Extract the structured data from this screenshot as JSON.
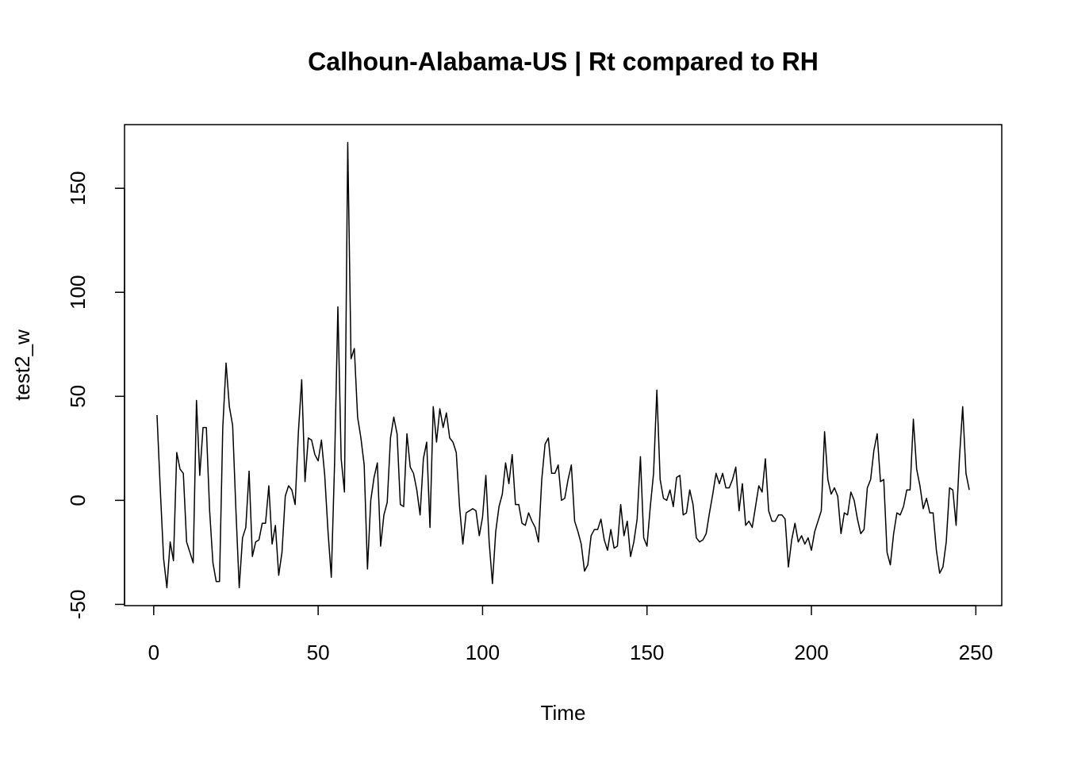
{
  "chart_data": {
    "type": "line",
    "title": "Calhoun-Alabama-US | Rt compared to RH",
    "x_label": "Time",
    "y_label": "test2_w",
    "color": "#000000",
    "xlim": [
      -8.88,
      257.88
    ],
    "ylim": [
      -50.6,
      180.6
    ],
    "xticks": [
      0,
      50,
      100,
      150,
      200,
      250
    ],
    "yticks": [
      -50,
      0,
      50,
      100,
      150
    ],
    "x": [
      1,
      2,
      3,
      4,
      5,
      6,
      7,
      8,
      9,
      10,
      11,
      12,
      13,
      14,
      15,
      16,
      17,
      18,
      19,
      20,
      21,
      22,
      23,
      24,
      25,
      26,
      27,
      28,
      29,
      30,
      31,
      32,
      33,
      34,
      35,
      36,
      37,
      38,
      39,
      40,
      41,
      42,
      43,
      44,
      45,
      46,
      47,
      48,
      49,
      50,
      51,
      52,
      53,
      54,
      55,
      56,
      57,
      58,
      59,
      60,
      61,
      62,
      63,
      64,
      65,
      66,
      67,
      68,
      69,
      70,
      71,
      72,
      73,
      74,
      75,
      76,
      77,
      78,
      79,
      80,
      81,
      82,
      83,
      84,
      85,
      86,
      87,
      88,
      89,
      90,
      91,
      92,
      93,
      94,
      95,
      96,
      97,
      98,
      99,
      100,
      101,
      102,
      103,
      104,
      105,
      106,
      107,
      108,
      109,
      110,
      111,
      112,
      113,
      114,
      115,
      116,
      117,
      118,
      119,
      120,
      121,
      122,
      123,
      124,
      125,
      126,
      127,
      128,
      129,
      130,
      131,
      132,
      133,
      134,
      135,
      136,
      137,
      138,
      139,
      140,
      141,
      142,
      143,
      144,
      145,
      146,
      147,
      148,
      149,
      150,
      151,
      152,
      153,
      154,
      155,
      156,
      157,
      158,
      159,
      160,
      161,
      162,
      163,
      164,
      165,
      166,
      167,
      168,
      169,
      170,
      171,
      172,
      173,
      174,
      175,
      176,
      177,
      178,
      179,
      180,
      181,
      182,
      183,
      184,
      185,
      186,
      187,
      188,
      189,
      190,
      191,
      192,
      193,
      194,
      195,
      196,
      197,
      198,
      199,
      200,
      201,
      202,
      203,
      204,
      205,
      206,
      207,
      208,
      209,
      210,
      211,
      212,
      213,
      214,
      215,
      216,
      217,
      218,
      219,
      220,
      221,
      222,
      223,
      224,
      225,
      226,
      227,
      228,
      229,
      230,
      231,
      232,
      233,
      234,
      235,
      236,
      237,
      238,
      239,
      240,
      241,
      242,
      243,
      244,
      245,
      246,
      247,
      248
    ],
    "values": [
      41,
      5,
      -28,
      -42,
      -20,
      -29,
      23,
      15,
      13,
      -20,
      -25,
      -30,
      48,
      12,
      35,
      35,
      -5,
      -30,
      -39,
      -39,
      35,
      66,
      45,
      36,
      -5,
      -42,
      -18,
      -13,
      14,
      -27,
      -20,
      -19,
      -11,
      -11,
      7,
      -21,
      -12,
      -36,
      -25,
      2,
      7,
      5,
      -2,
      33,
      58,
      9,
      30,
      29,
      22,
      19,
      29,
      12,
      -15,
      -37,
      18,
      93,
      20,
      4,
      172,
      68,
      73,
      40,
      30,
      17,
      -33,
      0,
      11,
      18,
      -22,
      -7,
      -1,
      30,
      40,
      32,
      -2,
      -3,
      32,
      16,
      13,
      5,
      -7,
      20,
      28,
      -13,
      45,
      28,
      44,
      35,
      42,
      30,
      28,
      23,
      -3,
      -21,
      -6,
      -5,
      -4,
      -5,
      -17,
      -8,
      12,
      -20,
      -40,
      -15,
      -3,
      3,
      18,
      8,
      22,
      -2,
      -2,
      -11,
      -12,
      -6,
      -10,
      -13,
      -20,
      10,
      27,
      30,
      13,
      13,
      17,
      0,
      1,
      10,
      17,
      -10,
      -15,
      -21,
      -34,
      -31,
      -17,
      -14,
      -14,
      -9,
      -19,
      -24,
      -14,
      -23,
      -22,
      -2,
      -17,
      -10,
      -27,
      -20,
      -9,
      21,
      -18,
      -22,
      -3,
      13,
      53,
      10,
      1,
      0,
      5,
      -3,
      11,
      12,
      -7,
      -6,
      5,
      -2,
      -18,
      -20,
      -19,
      -16,
      -6,
      3,
      13,
      8,
      13,
      6,
      6,
      10,
      16,
      -5,
      8,
      -12,
      -10,
      -13,
      -3,
      7,
      4,
      20,
      -5,
      -10,
      -10,
      -7,
      -7,
      -9,
      -32,
      -19,
      -11,
      -20,
      -17,
      -21,
      -18,
      -24,
      -15,
      -10,
      -5,
      33,
      10,
      3,
      6,
      2,
      -16,
      -6,
      -7,
      4,
      0,
      -9,
      -16,
      -14,
      6,
      10,
      24,
      32,
      9,
      10,
      -25,
      -31,
      -16,
      -6,
      -7,
      -3,
      5,
      5,
      39,
      15,
      7,
      -4,
      1,
      -6,
      -6,
      -24,
      -35,
      -32,
      -20,
      6,
      5,
      -12,
      20,
      45,
      13,
      5
    ]
  }
}
